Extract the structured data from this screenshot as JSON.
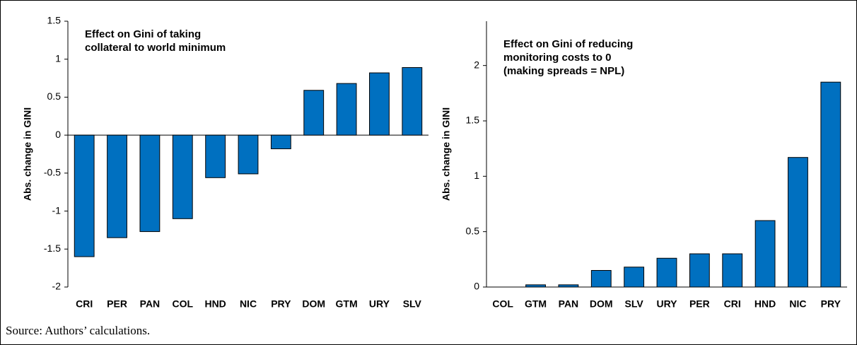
{
  "chart_data": [
    {
      "type": "bar",
      "title": [
        "Effect on Gini of taking",
        "collateral to world minimum"
      ],
      "ylabel": "Abs. change in GINI",
      "categories": [
        "CRI",
        "PER",
        "PAN",
        "COL",
        "HND",
        "NIC",
        "PRY",
        "DOM",
        "GTM",
        "URY",
        "SLV"
      ],
      "values": [
        -1.6,
        -1.35,
        -1.27,
        -1.1,
        -0.56,
        -0.51,
        -0.18,
        0.59,
        0.68,
        0.82,
        0.89
      ],
      "color": "#0070c0",
      "ylim": [
        -2,
        1.5
      ],
      "yticks": [
        -2,
        -1.5,
        -1,
        -0.5,
        0,
        0.5,
        1,
        1.5
      ],
      "grid": false
    },
    {
      "type": "bar",
      "title": [
        "Effect on Gini of reducing",
        "monitoring costs to 0",
        "(making spreads = NPL)"
      ],
      "ylabel": "Abs. change in GINI",
      "categories": [
        "COL",
        "GTM",
        "PAN",
        "DOM",
        "SLV",
        "URY",
        "PER",
        "CRI",
        "HND",
        "NIC",
        "PRY"
      ],
      "values": [
        0,
        0.02,
        0.02,
        0.15,
        0.18,
        0.26,
        0.3,
        0.3,
        0.6,
        1.17,
        1.85
      ],
      "color": "#0070c0",
      "ylim": [
        0,
        2.4
      ],
      "yticks": [
        0,
        0.5,
        1,
        1.5,
        2
      ],
      "grid": false
    }
  ],
  "source": "Source: Authors’ calculations."
}
